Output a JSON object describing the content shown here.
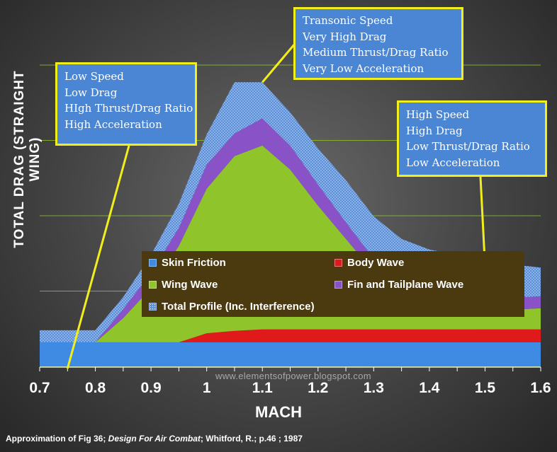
{
  "chart_data": {
    "type": "area",
    "stacked": true,
    "xlabel": "MACH",
    "ylabel": "TOTAL DRAG (STRAIGHT WING)",
    "x": [
      0.7,
      0.8,
      0.85,
      0.9,
      0.95,
      1.0,
      1.05,
      1.1,
      1.15,
      1.2,
      1.25,
      1.3,
      1.35,
      1.4,
      1.45,
      1.5,
      1.55,
      1.6
    ],
    "xlim": [
      0.7,
      1.6
    ],
    "xticks": [
      "0.7",
      "0.8",
      "0.9",
      "1",
      "1.1",
      "1.2",
      "1.3",
      "1.4",
      "1.5",
      "1.6"
    ],
    "ylim": [
      0,
      100
    ],
    "grid": true,
    "legend_position": "center-bottom",
    "series": [
      {
        "name": "Skin Friction",
        "color": "#3f8be3",
        "values": [
          8,
          8,
          8,
          8,
          8,
          8,
          8,
          8,
          8,
          8,
          8,
          8,
          8,
          8,
          8,
          8,
          8,
          8
        ]
      },
      {
        "name": "Body Wave",
        "color": "#e01a1a",
        "values": [
          0,
          0,
          0,
          0,
          0,
          3,
          3.8,
          4.3,
          4.3,
          4.3,
          4.3,
          4.3,
          4.3,
          4.3,
          4.3,
          4.3,
          4.3,
          4.3
        ]
      },
      {
        "name": "Wing Wave",
        "color": "#8fc52a",
        "values": [
          0,
          0,
          8,
          18,
          32,
          48,
          58,
          61,
          53,
          41,
          30,
          19,
          13,
          10,
          8.5,
          7,
          6.5,
          7
        ]
      },
      {
        "name": "Fin and Tailplane Wave",
        "color": "#8a52c7",
        "values": [
          0,
          0,
          3,
          5,
          6,
          8,
          7.5,
          9,
          8,
          7,
          5.5,
          4.5,
          4,
          3.5,
          3.7,
          4,
          4,
          4
        ]
      },
      {
        "name": "Total Profile (Inc. Interference)",
        "color": "#5a8fd9",
        "values": [
          4,
          4,
          4,
          6,
          8,
          10,
          17,
          12,
          11,
          12,
          14,
          14,
          13,
          13,
          12.5,
          12,
          11,
          9.5
        ]
      }
    ],
    "annotations": [
      {
        "lines": [
          "Low Speed",
          "Low Drag",
          "HIgh Thrust/Drag Ratio",
          "High Acceleration"
        ],
        "points_to_mach": 0.75
      },
      {
        "lines": [
          "Transonic Speed",
          "Very High Drag",
          "Medium Thrust/Drag Ratio",
          "Very Low Acceleration"
        ],
        "points_to_mach": 1.1
      },
      {
        "lines": [
          "High Speed",
          "High Drag",
          "Low Thrust/Drag Ratio",
          "Low Acceleration"
        ],
        "points_to_mach": 1.5
      }
    ]
  },
  "watermark": "www.elementsofpower.blogspot.com",
  "source": {
    "prefix": "Approximation of Fig 36; ",
    "title": "Design For Air Combat",
    "suffix": "; Whitford, R.; p.46 ; 1987"
  },
  "colors": {
    "callout_fill": "#4a86d4",
    "callout_border": "#f2ee1c",
    "legend_fill": "#4b3a10",
    "gridline": "#8fc52a"
  }
}
